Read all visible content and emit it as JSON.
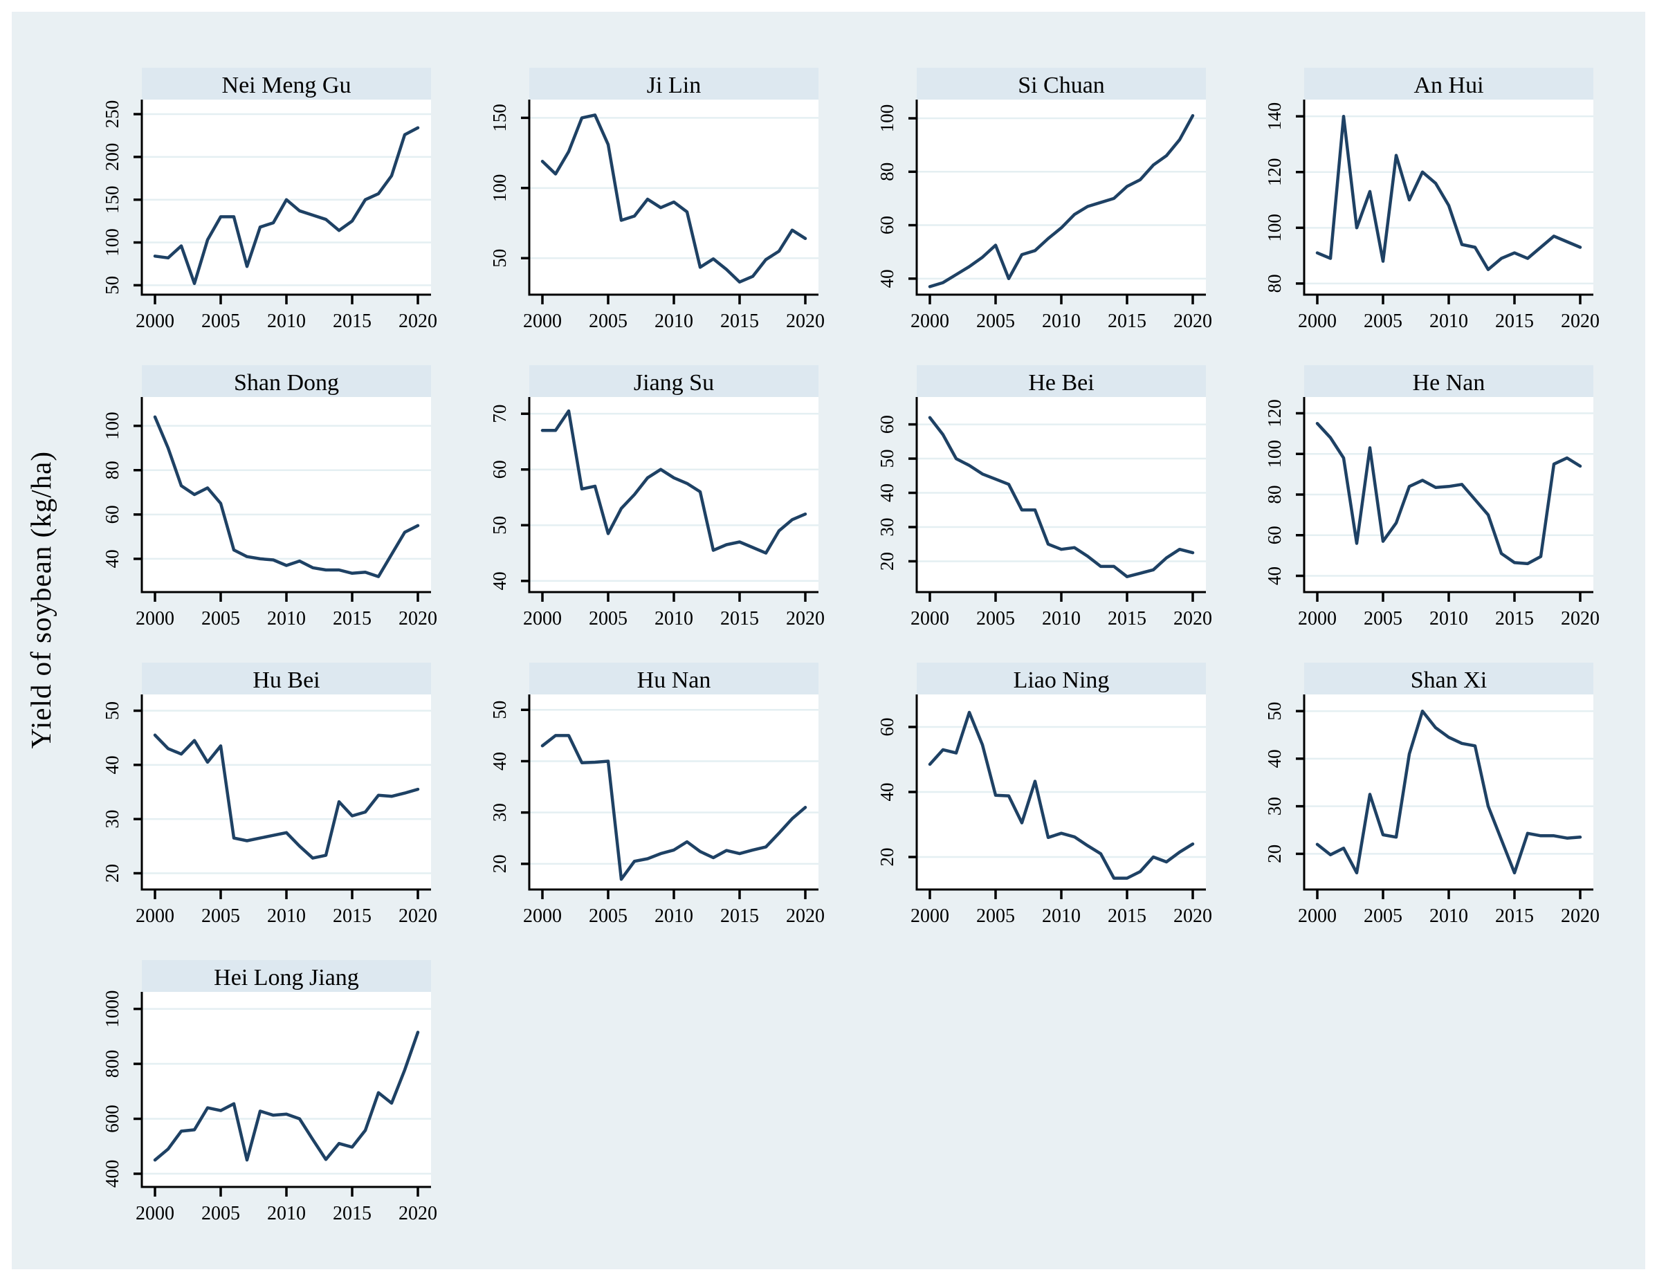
{
  "figure": {
    "ylabel": "Yield of soybean (kg/ha)",
    "colors": {
      "outer_border": "#ffffff",
      "background": "#e9f0f3",
      "panel_background": "#ffffff",
      "title_band": "#dde8f0",
      "gridline": "#e4eff2",
      "axis": "#000000",
      "line": "#1e4164"
    },
    "x_axis": {
      "years": [
        2000,
        2001,
        2002,
        2003,
        2004,
        2005,
        2006,
        2007,
        2008,
        2009,
        2010,
        2011,
        2012,
        2013,
        2014,
        2015,
        2016,
        2017,
        2018,
        2019,
        2020
      ],
      "ticks": [
        2000,
        2005,
        2010,
        2015,
        2020
      ],
      "xlim": [
        1999.0,
        2021.0
      ]
    }
  },
  "chart_data": [
    {
      "type": "line",
      "title": "Nei Meng Gu",
      "yticks": [
        50,
        100,
        150,
        200,
        250
      ],
      "ylim": [
        39,
        267
      ],
      "y": [
        84,
        82,
        96,
        52,
        103,
        130,
        130,
        72,
        118,
        123,
        150,
        137,
        132,
        127,
        114,
        125,
        150,
        157,
        178,
        226,
        234
      ]
    },
    {
      "type": "line",
      "title": "Ji Lin",
      "yticks": [
        50,
        100,
        150
      ],
      "ylim": [
        24,
        163
      ],
      "y": [
        119,
        110,
        126,
        150,
        152,
        131,
        77,
        80,
        92,
        86,
        90,
        83,
        43.5,
        49.5,
        42,
        33,
        37,
        49,
        55,
        70,
        64
      ]
    },
    {
      "type": "line",
      "title": "Si Chuan",
      "yticks": [
        40,
        60,
        80,
        100
      ],
      "ylim": [
        34,
        107
      ],
      "y": [
        37,
        38.5,
        41.5,
        44.5,
        48,
        52.5,
        40,
        49,
        50.5,
        55,
        59,
        64,
        67,
        68.5,
        70,
        74.5,
        77,
        82.5,
        86,
        92,
        101
      ]
    },
    {
      "type": "line",
      "title": "An Hui",
      "yticks": [
        80,
        100,
        120,
        140
      ],
      "ylim": [
        76,
        146
      ],
      "y": [
        91,
        89,
        140,
        100,
        113,
        88,
        126,
        110,
        120,
        116,
        108,
        94,
        93,
        85,
        89,
        91,
        89,
        93,
        97,
        95,
        93
      ]
    },
    {
      "type": "line",
      "title": "Shan Dong",
      "yticks": [
        40,
        60,
        80,
        100
      ],
      "ylim": [
        25,
        113
      ],
      "y": [
        104,
        90,
        73,
        69,
        72,
        65,
        44,
        41,
        40,
        39.5,
        37,
        39,
        36,
        35,
        35,
        33.5,
        34,
        32,
        42,
        52,
        55
      ]
    },
    {
      "type": "line",
      "title": "Jiang Su",
      "yticks": [
        40,
        50,
        60,
        70
      ],
      "ylim": [
        38,
        73
      ],
      "y": [
        67,
        67,
        70.5,
        56.5,
        57,
        48.5,
        53,
        55.5,
        58.5,
        60,
        58.5,
        57.5,
        56,
        45.5,
        46.5,
        47,
        46,
        45,
        49,
        51,
        52
      ]
    },
    {
      "type": "line",
      "title": "He Bei",
      "yticks": [
        20,
        30,
        40,
        50,
        60
      ],
      "ylim": [
        11,
        68
      ],
      "y": [
        62,
        57,
        50,
        48,
        45.5,
        44,
        42.5,
        35,
        35,
        25,
        23.5,
        24,
        21.5,
        18.5,
        18.5,
        15.5,
        16.5,
        17.5,
        21,
        23.5,
        22.5
      ]
    },
    {
      "type": "line",
      "title": "He Nan",
      "yticks": [
        40,
        60,
        80,
        100,
        120
      ],
      "ylim": [
        32,
        128
      ],
      "y": [
        115,
        108,
        98,
        56,
        103,
        57,
        66,
        84,
        87,
        83.5,
        84,
        85,
        77.5,
        70,
        51,
        46.5,
        46,
        49.5,
        95,
        98,
        94
      ]
    },
    {
      "type": "line",
      "title": "Hu Bei",
      "yticks": [
        20,
        30,
        40,
        50
      ],
      "ylim": [
        17,
        53
      ],
      "y": [
        45.5,
        43,
        42,
        44.5,
        40.5,
        43.5,
        26.5,
        26,
        26.5,
        27,
        27.5,
        25,
        22.8,
        23.3,
        33.2,
        30.6,
        31.3,
        34.4,
        34.2,
        34.8,
        35.5
      ]
    },
    {
      "type": "line",
      "title": "Hu Nan",
      "yticks": [
        20,
        30,
        40,
        50
      ],
      "ylim": [
        15,
        53
      ],
      "y": [
        43,
        45,
        45,
        39.7,
        39.8,
        40,
        17,
        20.5,
        21,
        22,
        22.7,
        24.3,
        22.4,
        21.2,
        22.6,
        22,
        22.7,
        23.3,
        26,
        28.8,
        31
      ]
    },
    {
      "type": "line",
      "title": "Liao Ning",
      "yticks": [
        20,
        40,
        60
      ],
      "ylim": [
        10,
        70
      ],
      "y": [
        48.5,
        53,
        52,
        64.5,
        54.5,
        39,
        38.8,
        30.5,
        43.3,
        26,
        27.3,
        26.2,
        23.5,
        21,
        13.5,
        13.5,
        15.5,
        20,
        18.5,
        21.5,
        24
      ]
    },
    {
      "type": "line",
      "title": "Shan Xi",
      "yticks": [
        20,
        30,
        40,
        50
      ],
      "ylim": [
        12.5,
        53.5
      ],
      "y": [
        22,
        19.8,
        21.2,
        16,
        32.5,
        24,
        23.5,
        41,
        50,
        46.5,
        44.5,
        43.2,
        42.7,
        30,
        23,
        16,
        24.3,
        23.8,
        23.8,
        23.3,
        23.5
      ]
    },
    {
      "type": "line",
      "title": "Hei Long Jiang",
      "yticks": [
        400,
        600,
        800,
        1000
      ],
      "ylim": [
        352,
        1062
      ],
      "y": [
        450,
        490,
        555,
        560,
        640,
        630,
        655,
        450,
        628,
        613,
        617,
        600,
        525,
        452,
        510,
        497,
        558,
        695,
        657,
        778,
        915
      ]
    }
  ]
}
